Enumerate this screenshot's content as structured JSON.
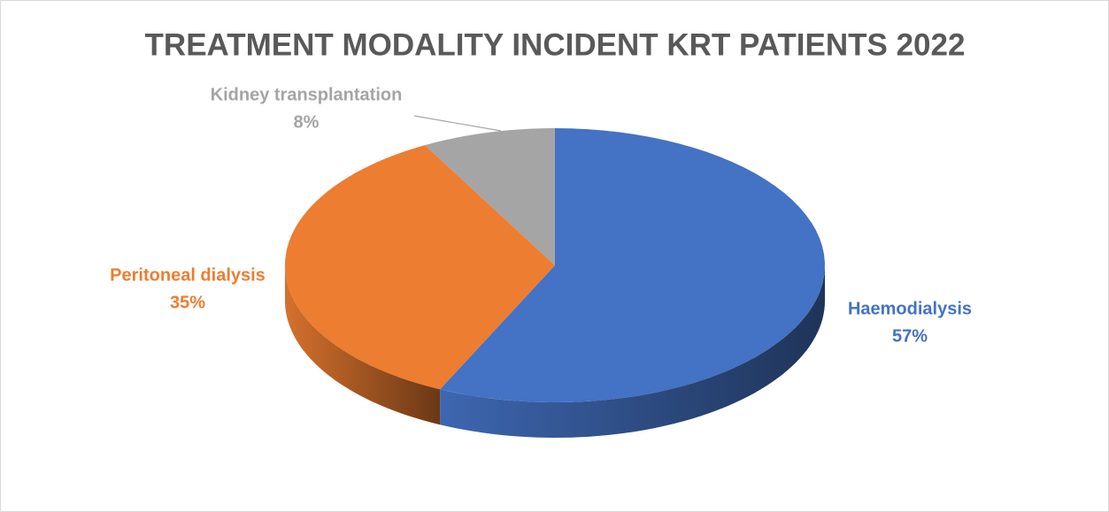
{
  "chart_data": {
    "type": "pie",
    "title": "TREATMENT MODALITY INCIDENT KRT PATIENTS 2022",
    "categories": [
      "Haemodialysis",
      "Peritoneal dialysis",
      "Kidney transplantation"
    ],
    "values": [
      57,
      35,
      8
    ],
    "value_labels": [
      "57%",
      "35%",
      "8%"
    ],
    "colors": [
      "#4472c4",
      "#ed7d31",
      "#a5a5a5"
    ]
  }
}
